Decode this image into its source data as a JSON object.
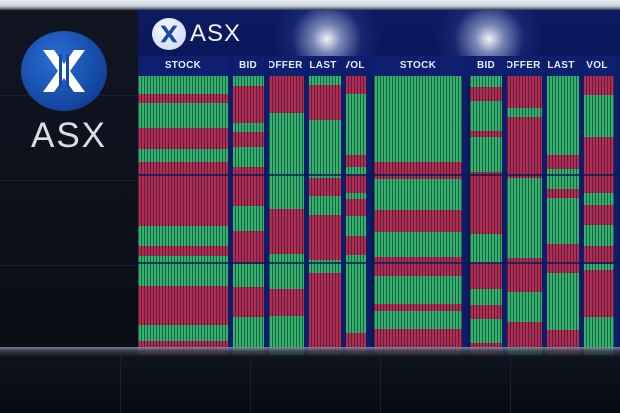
{
  "brand": {
    "wordmark": "ASX",
    "board_wordmark": "ASX",
    "logo_icon": "asx-x-logo-icon"
  },
  "board": {
    "left_columns": [
      "STOCK",
      "BID",
      "OFFER",
      "LAST",
      "VOL"
    ],
    "right_columns": [
      "STOCK",
      "BID",
      "OFFER",
      "LAST",
      "VOL"
    ]
  },
  "colors": {
    "brand_blue": "#164aa6",
    "board_blue": "#0a1a52",
    "ticker_green": "#3ddc6a",
    "ticker_red": "#e0304a"
  }
}
